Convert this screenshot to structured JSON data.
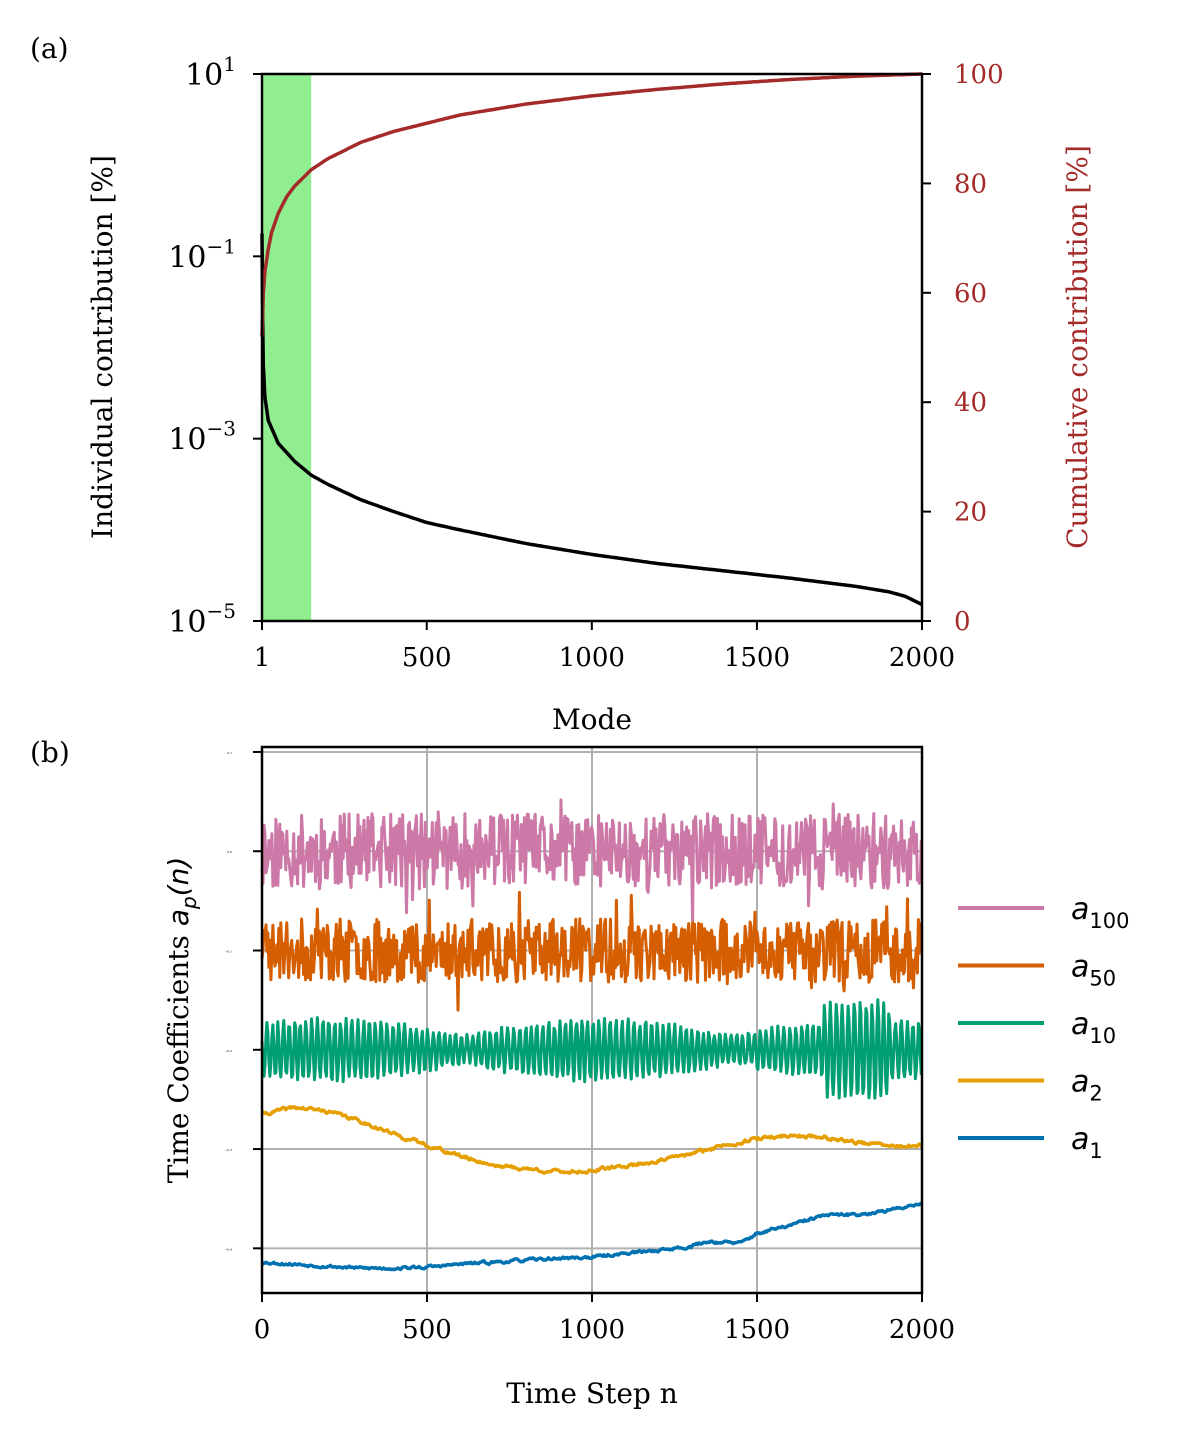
{
  "chart_data": [
    {
      "type": "line",
      "panel_label": "(a)",
      "title": "",
      "xlabel": "Mode",
      "ylabel_left": "Individual contribution [%]",
      "ylabel_right": "Cumulative contribution [%]",
      "xlim": [
        1,
        2000
      ],
      "xticks": [
        "1",
        "500",
        "1000",
        "1500",
        "2000"
      ],
      "xtick_values": [
        1,
        500,
        1000,
        1500,
        2000
      ],
      "yscale_left": "log",
      "ylim_left_log10": [
        -5,
        1
      ],
      "yticks_left": [
        {
          "value_log10": 1,
          "base": "10",
          "exp": "1"
        },
        {
          "value_log10": -1,
          "base": "10",
          "exp": "−1"
        },
        {
          "value_log10": -3,
          "base": "10",
          "exp": "−3"
        },
        {
          "value_log10": -5,
          "base": "10",
          "exp": "−5"
        }
      ],
      "ylim_right": [
        0,
        100
      ],
      "yticks_right": [
        "0",
        "20",
        "40",
        "60",
        "80",
        "100"
      ],
      "ytick_values_right": [
        0,
        20,
        40,
        60,
        80,
        100
      ],
      "highlight_span": {
        "x_range": [
          1,
          150
        ],
        "color": "#90ee90"
      },
      "series": [
        {
          "name": "Individual contribution",
          "axis": "left",
          "color": "#000000",
          "x": [
            1,
            3,
            5,
            10,
            20,
            50,
            100,
            150,
            200,
            300,
            400,
            500,
            600,
            800,
            1000,
            1200,
            1400,
            1600,
            1800,
            1900,
            1950,
            2000
          ],
          "log10_y": [
            -0.75,
            -1.7,
            -2.2,
            -2.55,
            -2.8,
            -3.05,
            -3.25,
            -3.4,
            -3.5,
            -3.67,
            -3.8,
            -3.92,
            -4.0,
            -4.15,
            -4.27,
            -4.37,
            -4.45,
            -4.53,
            -4.62,
            -4.68,
            -4.73,
            -4.82
          ]
        },
        {
          "name": "Cumulative contribution",
          "axis": "right",
          "color": "#a52a2a",
          "x": [
            1,
            5,
            10,
            20,
            30,
            50,
            75,
            100,
            150,
            200,
            300,
            400,
            500,
            600,
            800,
            1000,
            1200,
            1400,
            1600,
            1800,
            2000
          ],
          "y": [
            52,
            60,
            64,
            68,
            71,
            74.5,
            77.5,
            79.5,
            82.5,
            84.5,
            87.5,
            89.5,
            91.0,
            92.5,
            94.5,
            96.0,
            97.2,
            98.2,
            99.0,
            99.6,
            100
          ]
        }
      ]
    },
    {
      "type": "line",
      "panel_label": "(b)",
      "title": "",
      "xlabel": "Time Step n",
      "ylabel": "Time Coefficients a_p(n)",
      "ylabel_text": "Time Coefficients ",
      "ylabel_math_base": "a",
      "ylabel_math_sub": "p",
      "ylabel_math_tail": "(n)",
      "xlim": [
        0,
        2000
      ],
      "xticks": [
        "0",
        "500",
        "1000",
        "1500",
        "2000"
      ],
      "xtick_values": [
        0,
        500,
        1000,
        1500,
        2000
      ],
      "ylim": [
        -0.445,
        0.105
      ],
      "yticks": [
        "0.1",
        "0.0",
        "−0.1",
        "−0.2",
        "−0.3",
        "−0.4"
      ],
      "ytick_values": [
        0.1,
        0.0,
        -0.1,
        -0.2,
        -0.3,
        -0.4
      ],
      "grid": true,
      "legend_position": "right",
      "series": [
        {
          "name": "a100",
          "label_base": "a",
          "label_sub": "100",
          "color": "#cc79a7",
          "noise": "high",
          "amp": 0.038,
          "seed": 11,
          "x": [
            0,
            500,
            1000,
            1500,
            2000
          ],
          "baseline": [
            0.0,
            0.0,
            0.0,
            0.0,
            0.0
          ]
        },
        {
          "name": "a50",
          "label_base": "a",
          "label_sub": "50",
          "color": "#d55e00",
          "noise": "high",
          "amp": 0.032,
          "seed": 23,
          "x": [
            0,
            500,
            1000,
            1500,
            2000
          ],
          "baseline": [
            -0.1,
            -0.1,
            -0.1,
            -0.1,
            -0.1
          ]
        },
        {
          "name": "a10",
          "label_base": "a",
          "label_sub": "10",
          "color": "#009e73",
          "noise": "oscillation",
          "amp": 0.03,
          "seed": 37,
          "x": [
            0,
            500,
            1000,
            1500,
            2000
          ],
          "baseline": [
            -0.2,
            -0.2,
            -0.2,
            -0.2,
            -0.2
          ]
        },
        {
          "name": "a2",
          "label_base": "a",
          "label_sub": "2",
          "color": "#e69f00",
          "noise": "low",
          "amp": 0.0015,
          "seed": 41,
          "x": [
            0,
            100,
            200,
            300,
            400,
            500,
            600,
            700,
            800,
            900,
            1000,
            1100,
            1200,
            1300,
            1400,
            1500,
            1600,
            1700,
            1800,
            1900,
            2000
          ],
          "baseline": [
            -0.265,
            -0.258,
            -0.262,
            -0.272,
            -0.285,
            -0.296,
            -0.307,
            -0.316,
            -0.32,
            -0.323,
            -0.322,
            -0.317,
            -0.312,
            -0.305,
            -0.296,
            -0.29,
            -0.286,
            -0.288,
            -0.293,
            -0.297,
            -0.297
          ]
        },
        {
          "name": "a1",
          "label_base": "a",
          "label_sub": "1",
          "color": "#0072b2",
          "noise": "low",
          "amp": 0.0012,
          "seed": 53,
          "x": [
            0,
            100,
            200,
            300,
            400,
            500,
            600,
            700,
            800,
            900,
            1000,
            1100,
            1200,
            1300,
            1350,
            1450,
            1500,
            1600,
            1700,
            1800,
            1900,
            2000
          ],
          "baseline": [
            -0.414,
            -0.416,
            -0.418,
            -0.42,
            -0.42,
            -0.419,
            -0.416,
            -0.414,
            -0.412,
            -0.41,
            -0.409,
            -0.405,
            -0.402,
            -0.398,
            -0.393,
            -0.395,
            -0.385,
            -0.377,
            -0.367,
            -0.366,
            -0.362,
            -0.354
          ]
        }
      ]
    }
  ]
}
